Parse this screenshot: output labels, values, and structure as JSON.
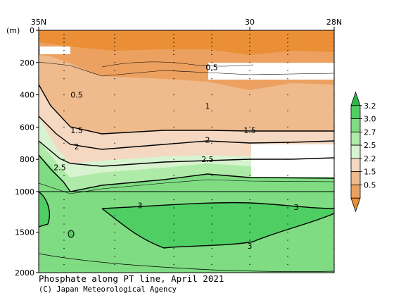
{
  "chart_data": {
    "type": "heatmap",
    "title": "Phosphate along PT line, April 2021",
    "credit": "(C) Japan Meteorological Agency",
    "ylabel": "(m)",
    "x_ticks": [
      {
        "label": "35N",
        "lat": 35
      },
      {
        "label": "30",
        "lat": 30
      },
      {
        "label": "28N",
        "lat": 28
      }
    ],
    "y_ticks": [
      0,
      200,
      400,
      600,
      800,
      1000,
      1500,
      2000
    ],
    "ylim": [
      0,
      2000
    ],
    "y_scale": "stretched below 1000 m",
    "grid": false,
    "colorbar": {
      "placement": "right",
      "levels": [
        "3.2",
        "3.0",
        "2.7",
        "2.5",
        "2.2",
        "1.5",
        "0.5"
      ],
      "colors": [
        "#2fb84a",
        "#4fcf63",
        "#7fdc83",
        "#aeeaa8",
        "#d8f3d0",
        "#f4d8c2",
        "#efbb8d",
        "#eda160",
        "#ea8f36"
      ]
    },
    "contour_labels": [
      {
        "text": "0.5",
        "lat": 30.9,
        "depth": 230
      },
      {
        "text": "0.5",
        "lat": 34.1,
        "depth": 400
      },
      {
        "text": "1",
        "lat": 31.0,
        "depth": 470
      },
      {
        "text": "1.5",
        "lat": 34.1,
        "depth": 620
      },
      {
        "text": "1.5",
        "lat": 30.0,
        "depth": 620
      },
      {
        "text": "2",
        "lat": 34.1,
        "depth": 720
      },
      {
        "text": "2",
        "lat": 31.0,
        "depth": 680
      },
      {
        "text": "2.5",
        "lat": 34.5,
        "depth": 850
      },
      {
        "text": "2.5",
        "lat": 31.0,
        "depth": 800
      },
      {
        "text": "3",
        "lat": 32.6,
        "depth": 1170
      },
      {
        "text": "3",
        "lat": 28.9,
        "depth": 1190
      },
      {
        "text": "3",
        "lat": 30.0,
        "depth": 1670
      }
    ]
  }
}
